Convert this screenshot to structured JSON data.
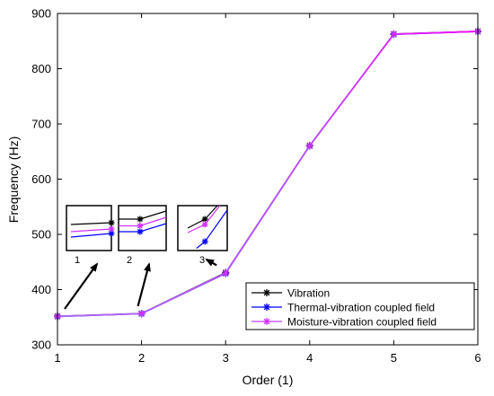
{
  "chart_data": {
    "type": "line",
    "xlabel": "Order (1)",
    "ylabel": "Frequency (Hz)",
    "xlim": [
      1,
      6
    ],
    "ylim": [
      300,
      900
    ],
    "xticks": [
      1,
      2,
      3,
      4,
      5,
      6
    ],
    "yticks": [
      300,
      400,
      500,
      600,
      700,
      800,
      900
    ],
    "x": [
      1,
      2,
      3,
      4,
      5,
      6
    ],
    "grid": false,
    "legend_position": "bottom-right",
    "series": [
      {
        "name": "Vibration",
        "color": "#000000",
        "marker": "asterisk",
        "values": [
          352,
          357,
          431,
          661,
          863,
          868
        ]
      },
      {
        "name": "Thermal-vibration coupled field",
        "color": "#0000ff",
        "marker": "asterisk",
        "values": [
          351,
          356,
          429,
          660,
          862,
          867
        ]
      },
      {
        "name": "Moisture-vibration coupled field",
        "color": "#ff00ff",
        "marker": "asterisk",
        "values": [
          351.5,
          356.5,
          430,
          660.5,
          862.5,
          867.5
        ]
      }
    ],
    "insets": [
      {
        "label": "1",
        "order": 1
      },
      {
        "label": "2",
        "order": 2
      },
      {
        "label": "3",
        "order": 3
      }
    ]
  }
}
